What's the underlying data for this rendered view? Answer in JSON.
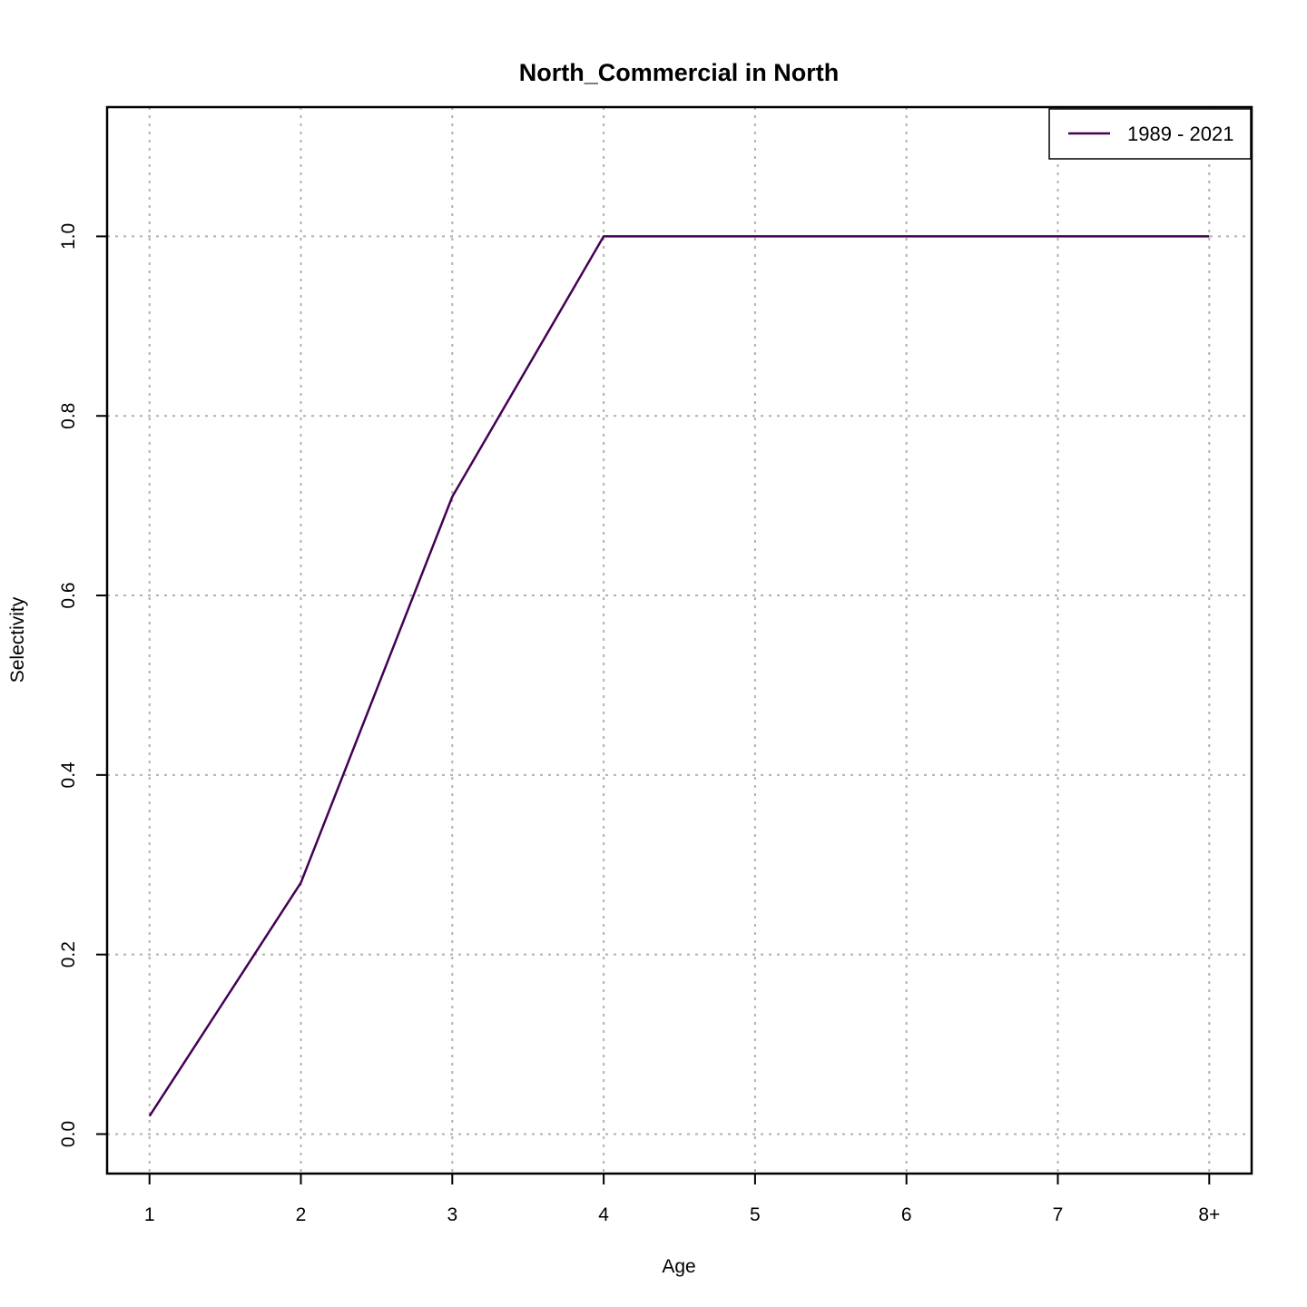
{
  "chart_data": {
    "type": "line",
    "title": "North_Commercial in North",
    "xlabel": "Age",
    "ylabel": "Selectivity",
    "categories": [
      "1",
      "2",
      "3",
      "4",
      "5",
      "6",
      "7",
      "8+"
    ],
    "x": [
      1,
      2,
      3,
      4,
      5,
      6,
      7,
      8
    ],
    "yticks": [
      0.0,
      0.2,
      0.4,
      0.6,
      0.8,
      1.0
    ],
    "ytick_labels": [
      "0.0",
      "0.2",
      "0.4",
      "0.6",
      "0.8",
      "1.0"
    ],
    "xlim": [
      0.72,
      8.28
    ],
    "ylim": [
      -0.044,
      1.144
    ],
    "grid": true,
    "legend_position": "top-right",
    "series": [
      {
        "name": "1989 - 2021",
        "color": "#440154",
        "values": [
          0.02,
          0.28,
          0.71,
          1.0,
          1.0,
          1.0,
          1.0,
          1.0
        ]
      }
    ]
  }
}
